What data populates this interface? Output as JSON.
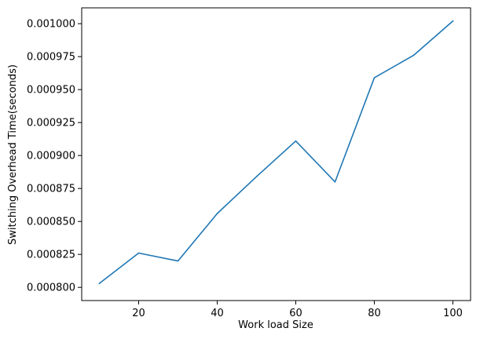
{
  "chart_data": {
    "type": "line",
    "title": "",
    "xlabel": "Work load Size",
    "ylabel": "Switching Overhead Time(seconds)",
    "xlim": [
      5.5,
      104.5
    ],
    "ylim": [
      0.00079,
      0.001012
    ],
    "x_ticks": [
      20,
      40,
      60,
      80,
      100
    ],
    "x_tick_labels": [
      "20",
      "40",
      "60",
      "80",
      "100"
    ],
    "y_ticks": [
      0.0008,
      0.000825,
      0.00085,
      0.000875,
      0.0009,
      0.000925,
      0.00095,
      0.000975,
      0.001
    ],
    "y_tick_labels": [
      "0.000800",
      "0.000825",
      "0.000850",
      "0.000875",
      "0.000900",
      "0.000925",
      "0.000950",
      "0.000975",
      "0.001000"
    ],
    "grid": false,
    "legend": "none",
    "series": [
      {
        "color": "#1f77b4",
        "x": [
          10,
          20,
          30,
          40,
          50,
          60,
          70,
          80,
          90,
          100
        ],
        "y": [
          0.000803,
          0.000826,
          0.00082,
          0.000856,
          0.000884,
          0.000911,
          0.00088,
          0.000959,
          0.000976,
          0.001002
        ]
      }
    ]
  }
}
